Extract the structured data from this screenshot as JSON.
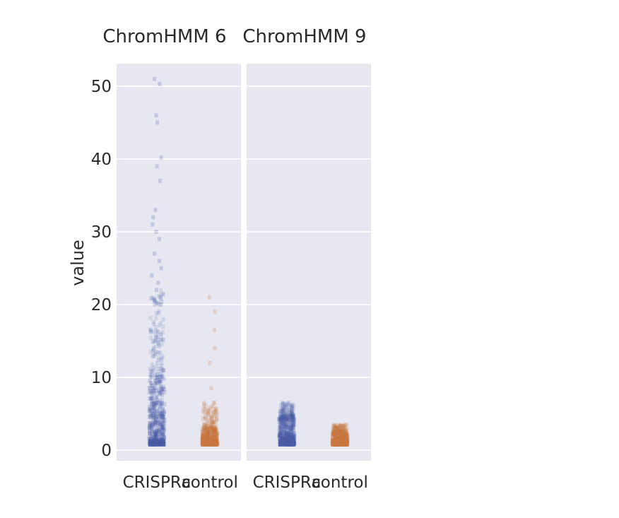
{
  "chart_data": {
    "type": "scatter",
    "ylabel": "value",
    "ylim": [
      0,
      52
    ],
    "yticks": [
      0,
      10,
      20,
      30,
      40,
      50
    ],
    "categories": [
      "CRISPRa",
      "control"
    ],
    "colors": {
      "CRISPRa": "#4a5aa5",
      "control": "#c9773e",
      "panel_bg": "#e6e7f1",
      "grid": "#ffffff"
    },
    "panels": [
      {
        "title": "ChromHMM 6",
        "groups": [
          {
            "category": "CRISPRa",
            "min": 0.8,
            "max": 51.0,
            "notable_values": [
              51.0,
              50.3,
              46.0,
              45.0,
              40.2,
              39.0,
              37.0,
              33.0,
              32.0,
              31.0,
              30.0,
              29.0,
              27.0,
              26.0,
              25.0,
              24.0,
              23.0,
              22.0,
              21.0,
              20.0
            ]
          },
          {
            "category": "control",
            "min": 0.8,
            "max": 21.0,
            "notable_values": [
              21.0,
              19.0,
              16.5,
              14.0,
              12.0,
              8.5,
              5.0,
              4.5
            ]
          }
        ]
      },
      {
        "title": "ChromHMM 9",
        "groups": [
          {
            "category": "CRISPRa",
            "min": 0.8,
            "max": 6.5,
            "notable_values": [
              6.5,
              6.0,
              5.5,
              5.0
            ]
          },
          {
            "category": "control",
            "min": 0.8,
            "max": 3.5,
            "notable_values": [
              3.5,
              3.0
            ]
          }
        ]
      }
    ]
  }
}
